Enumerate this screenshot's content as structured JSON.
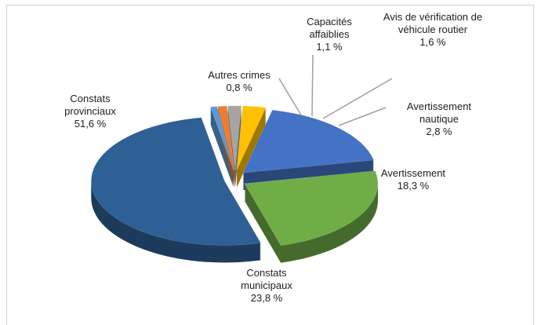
{
  "chart_data": {
    "type": "pie",
    "categories": [
      "Autres crimes",
      "Capacités affaiblies",
      "Avis de vérification de véhicule routier",
      "Avertissement nautique",
      "Avertissement",
      "Constats municipaux",
      "Constats provinciaux"
    ],
    "values": [
      0.8,
      1.1,
      1.6,
      2.8,
      18.3,
      23.8,
      51.6
    ],
    "value_labels": [
      "0,8 %",
      "1,1 %",
      "1,6 %",
      "2,8 %",
      "18,3 %",
      "23,8 %",
      "51,6 %"
    ],
    "colors": [
      "#5b9bd5",
      "#ed7d31",
      "#a5a5a5",
      "#ffc000",
      "#4472c4",
      "#70ad47",
      "#2e5f95"
    ]
  }
}
